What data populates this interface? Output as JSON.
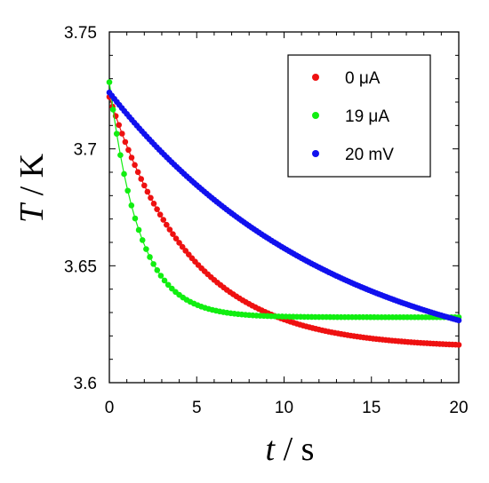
{
  "chart_data": {
    "type": "scatter",
    "xlabel_var": "t",
    "xlabel_unit": " / s",
    "ylabel_var": "T",
    "ylabel_unit": " / K",
    "xlim": [
      0,
      20
    ],
    "ylim": [
      3.6,
      3.75
    ],
    "x_ticks": [
      0,
      5,
      10,
      15,
      20
    ],
    "x_tick_labels": [
      "0",
      "5",
      "10",
      "15",
      "20"
    ],
    "y_ticks": [
      3.6,
      3.65,
      3.7,
      3.75
    ],
    "y_tick_labels": [
      "3.6",
      "3.65",
      "3.7",
      "3.75"
    ],
    "grid": false,
    "legend_position": "top-right",
    "series": [
      {
        "name": "0 μA",
        "color": "#ee1111",
        "model": {
          "a": 3.6148,
          "b": 0.1122,
          "tau": 4.6,
          "x0": -0.2
        },
        "x_range": [
          0,
          20
        ],
        "n": 110
      },
      {
        "name": "19 μA",
        "color": "#11ee11",
        "model": {
          "a": 3.628,
          "b": 0.1235,
          "tau": 1.7,
          "x0": -0.35
        },
        "x_range": [
          0,
          20
        ],
        "n": 95
      },
      {
        "name": "20 mV",
        "color": "#1111ee",
        "model": {
          "a": 3.6,
          "b": 0.128,
          "tau": 13.0,
          "x0": -0.4
        },
        "x_range": [
          0,
          20
        ],
        "n": 140
      }
    ]
  }
}
